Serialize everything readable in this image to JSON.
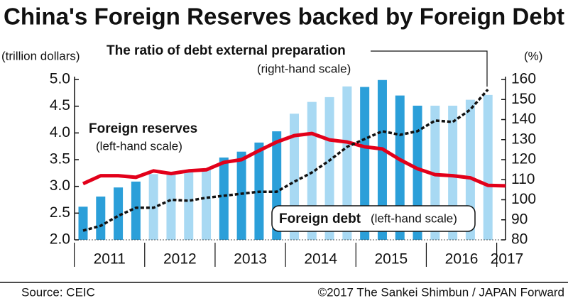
{
  "chart_data": {
    "type": "bar_line_combo",
    "title": "China's Foreign Reserves backed by Foreign Debt",
    "y_label": "(trillion dollars)",
    "y2_label": "(%)",
    "source": "Source: CEIC",
    "credit": "©2017 The Sankei Shimbun / JAPAN Forward",
    "year_labels": [
      "2011",
      "2012",
      "2013",
      "2014",
      "2015",
      "2016",
      "2017"
    ],
    "year_colors": [
      "#2b9fd9",
      "#a8d9f3"
    ],
    "annotations": {
      "ratio_title": "The ratio of debt external preparation",
      "ratio_scale": "(right-hand scale)",
      "reserves_title": "Foreign reserves",
      "reserves_scale": "(left-hand scale)",
      "debt_title": "Foreign debt",
      "debt_scale": "(left-hand scale)"
    },
    "series": [
      {
        "name": "Foreign debt",
        "kind": "bar",
        "axis": "y",
        "values": [
          2.62,
          2.81,
          2.98,
          3.09,
          3.23,
          3.26,
          3.29,
          3.33,
          3.54,
          3.65,
          3.82,
          4.03,
          4.36,
          4.58,
          4.67,
          4.87,
          4.86,
          4.99,
          4.7,
          4.51,
          4.51,
          4.51,
          4.62,
          4.71,
          null
        ]
      },
      {
        "name": "Foreign reserves",
        "kind": "line",
        "axis": "y",
        "color": "#e2001a",
        "values": [
          3.05,
          3.2,
          3.2,
          3.17,
          3.29,
          3.24,
          3.29,
          3.31,
          3.45,
          3.5,
          3.67,
          3.83,
          3.95,
          3.99,
          3.87,
          3.83,
          3.74,
          3.7,
          3.5,
          3.33,
          3.22,
          3.2,
          3.16,
          3.02,
          3.01
        ]
      },
      {
        "name": "The ratio of debt external preparation",
        "kind": "dashed_line",
        "axis": "y2",
        "color": "#111111",
        "values": [
          84.6,
          87,
          92,
          96,
          96,
          100,
          99.5,
          101,
          102,
          103,
          104,
          104,
          109,
          113.6,
          119.6,
          126.4,
          130.3,
          134.2,
          132.4,
          134.2,
          139.5,
          138.8,
          145,
          155,
          null
        ]
      }
    ],
    "ylim": [
      2,
      5
    ],
    "yticks": [
      {
        "value": 2,
        "label": "2.0"
      },
      {
        "value": 2.5,
        "label": "2.5"
      },
      {
        "value": 3,
        "label": "3.0"
      },
      {
        "value": 3.5,
        "label": "3.5"
      },
      {
        "value": 4,
        "label": "4.0"
      },
      {
        "value": 4.5,
        "label": "4.5"
      },
      {
        "value": 5,
        "label": "5.0"
      }
    ],
    "y2lim": [
      80,
      160
    ],
    "y2ticks": [
      80,
      90,
      100,
      110,
      120,
      130,
      140,
      150,
      160
    ]
  }
}
